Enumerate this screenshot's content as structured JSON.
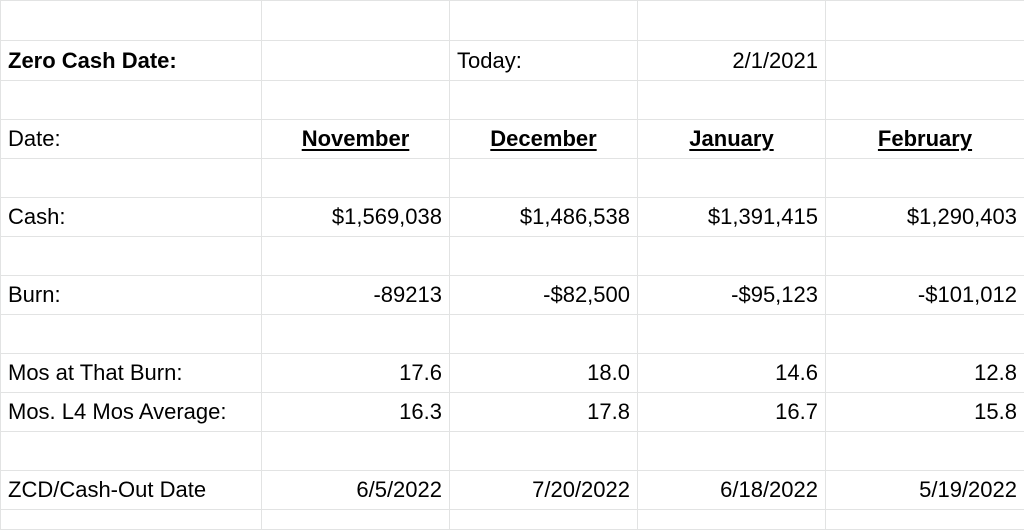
{
  "sheet": {
    "zero_cash_label": "Zero Cash Date:",
    "today_label": "Today:",
    "today_value": "2/1/2021",
    "date_label": "Date:",
    "months": [
      "November",
      "December",
      "January ",
      "February"
    ],
    "rows": [
      {
        "label": "Cash:",
        "values": [
          "$1,569,038",
          "$1,486,538",
          "$1,391,415",
          "$1,290,403"
        ]
      },
      {
        "label": "Burn:",
        "values": [
          "-89213",
          "-$82,500",
          "-$95,123",
          "-$101,012"
        ]
      },
      {
        "label": "Mos at That Burn:",
        "values": [
          "17.6",
          "18.0",
          "14.6",
          "12.8"
        ]
      },
      {
        "label": "Mos. L4 Mos Average:",
        "values": [
          "16.3",
          "17.8",
          "16.7",
          "15.8"
        ]
      },
      {
        "label": "ZCD/Cash-Out Date",
        "values": [
          "6/5/2022",
          "7/20/2022",
          "6/18/2022",
          "5/19/2022"
        ]
      }
    ]
  }
}
